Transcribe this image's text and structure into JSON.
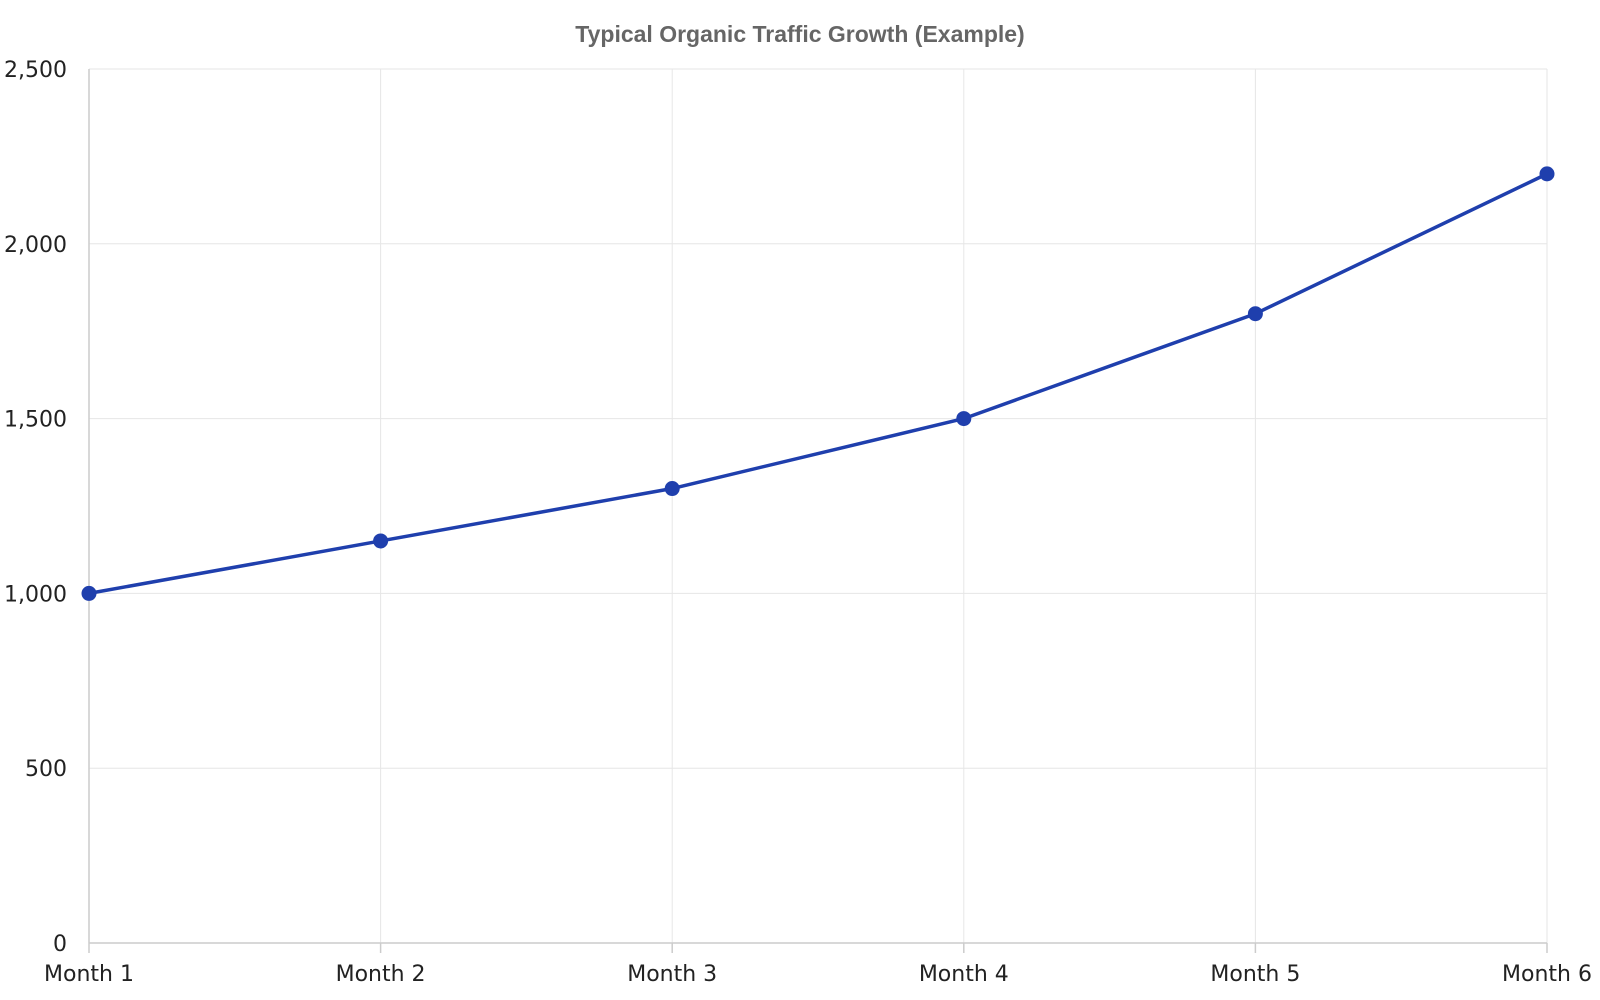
{
  "chart_data": {
    "type": "line",
    "title": "Typical Organic Traffic Growth (Example)",
    "xlabel": "",
    "ylabel": "",
    "categories": [
      "Month 1",
      "Month 2",
      "Month 3",
      "Month 4",
      "Month 5",
      "Month 6"
    ],
    "series": [
      {
        "values": [
          1000,
          1150,
          1300,
          1500,
          1800,
          2200
        ]
      }
    ],
    "ylim": [
      0,
      2500
    ],
    "yticks": [
      0,
      500,
      1000,
      1500,
      2000,
      2500
    ],
    "ytick_labels": [
      "0",
      "500",
      "1,000",
      "1,500",
      "2,000",
      "2,500"
    ],
    "grid": true,
    "legend": "none",
    "colors": {
      "series": "#1f3fad",
      "grid": "#e6e6e6",
      "axis": "#cccccc",
      "title": "#666666",
      "tick_label": "#222222"
    }
  }
}
